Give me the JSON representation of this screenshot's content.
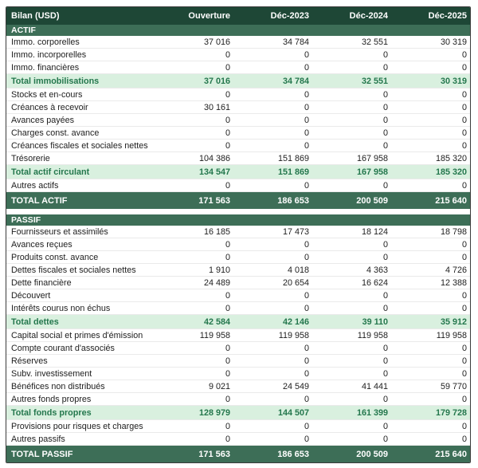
{
  "colors": {
    "header_bg": "#1e4736",
    "band_bg": "#3d6e57",
    "subtotal_bg": "#d9f0df",
    "subtotal_text": "#24774d",
    "text": "#212121",
    "border": "#3b3b3b",
    "separator": "#eaeaea"
  },
  "chart_data": {
    "type": "table",
    "title": "Bilan (USD)",
    "columns": [
      "Ouverture",
      "Déc-2023",
      "Déc-2024",
      "Déc-2025"
    ],
    "sections": [
      {
        "name": "ACTIF",
        "rows": [
          {
            "label": "Immo. corporelles",
            "type": "normal",
            "values": [
              "37 016",
              "34 784",
              "32 551",
              "30 319"
            ]
          },
          {
            "label": "Immo. incorporelles",
            "type": "normal",
            "values": [
              "0",
              "0",
              "0",
              "0"
            ]
          },
          {
            "label": "Immo. financières",
            "type": "normal",
            "values": [
              "0",
              "0",
              "0",
              "0"
            ]
          },
          {
            "label": "Total immobilisations",
            "type": "subtotal",
            "values": [
              "37 016",
              "34 784",
              "32 551",
              "30 319"
            ]
          },
          {
            "label": "Stocks et en-cours",
            "type": "normal",
            "values": [
              "0",
              "0",
              "0",
              "0"
            ]
          },
          {
            "label": "Créances à recevoir",
            "type": "normal",
            "values": [
              "30 161",
              "0",
              "0",
              "0"
            ]
          },
          {
            "label": "Avances payées",
            "type": "normal",
            "values": [
              "0",
              "0",
              "0",
              "0"
            ]
          },
          {
            "label": "Charges const. avance",
            "type": "normal",
            "values": [
              "0",
              "0",
              "0",
              "0"
            ]
          },
          {
            "label": "Créances fiscales et sociales nettes",
            "type": "normal",
            "values": [
              "0",
              "0",
              "0",
              "0"
            ]
          },
          {
            "label": "Trésorerie",
            "type": "normal",
            "values": [
              "104 386",
              "151 869",
              "167 958",
              "185 320"
            ]
          },
          {
            "label": "Total actif circulant",
            "type": "subtotal",
            "values": [
              "134 547",
              "151 869",
              "167 958",
              "185 320"
            ]
          },
          {
            "label": "Autres actifs",
            "type": "normal",
            "values": [
              "0",
              "0",
              "0",
              "0"
            ]
          }
        ],
        "total": {
          "label": "TOTAL ACTIF",
          "values": [
            "171 563",
            "186 653",
            "200 509",
            "215 640"
          ]
        }
      },
      {
        "name": "PASSIF",
        "rows": [
          {
            "label": "Fournisseurs et assimilés",
            "type": "normal",
            "values": [
              "16 185",
              "17 473",
              "18 124",
              "18 798"
            ]
          },
          {
            "label": "Avances reçues",
            "type": "normal",
            "values": [
              "0",
              "0",
              "0",
              "0"
            ]
          },
          {
            "label": "Produits const. avance",
            "type": "normal",
            "values": [
              "0",
              "0",
              "0",
              "0"
            ]
          },
          {
            "label": "Dettes fiscales et sociales nettes",
            "type": "normal",
            "values": [
              "1 910",
              "4 018",
              "4 363",
              "4 726"
            ]
          },
          {
            "label": "Dette financière",
            "type": "normal",
            "values": [
              "24 489",
              "20 654",
              "16 624",
              "12 388"
            ]
          },
          {
            "label": "Découvert",
            "type": "normal",
            "values": [
              "0",
              "0",
              "0",
              "0"
            ]
          },
          {
            "label": "Intérêts courus non échus",
            "type": "normal",
            "values": [
              "0",
              "0",
              "0",
              "0"
            ]
          },
          {
            "label": "Total dettes",
            "type": "subtotal",
            "values": [
              "42 584",
              "42 146",
              "39 110",
              "35 912"
            ]
          },
          {
            "label": "Capital social et primes d'émission",
            "type": "normal",
            "values": [
              "119 958",
              "119 958",
              "119 958",
              "119 958"
            ]
          },
          {
            "label": "Compte courant d'associés",
            "type": "normal",
            "values": [
              "0",
              "0",
              "0",
              "0"
            ]
          },
          {
            "label": "Réserves",
            "type": "normal",
            "values": [
              "0",
              "0",
              "0",
              "0"
            ]
          },
          {
            "label": "Subv. investissement",
            "type": "normal",
            "values": [
              "0",
              "0",
              "0",
              "0"
            ]
          },
          {
            "label": "Bénéfices non distribués",
            "type": "normal",
            "values": [
              "9 021",
              "24 549",
              "41 441",
              "59 770"
            ]
          },
          {
            "label": "Autres fonds propres",
            "type": "normal",
            "values": [
              "0",
              "0",
              "0",
              "0"
            ]
          },
          {
            "label": "Total fonds propres",
            "type": "subtotal",
            "values": [
              "128 979",
              "144 507",
              "161 399",
              "179 728"
            ]
          },
          {
            "label": "Provisions pour risques et charges",
            "type": "normal",
            "values": [
              "0",
              "0",
              "0",
              "0"
            ]
          },
          {
            "label": "Autres passifs",
            "type": "normal",
            "values": [
              "0",
              "0",
              "0",
              "0"
            ]
          }
        ],
        "total": {
          "label": "TOTAL PASSIF",
          "values": [
            "171 563",
            "186 653",
            "200 509",
            "215 640"
          ]
        }
      }
    ]
  }
}
